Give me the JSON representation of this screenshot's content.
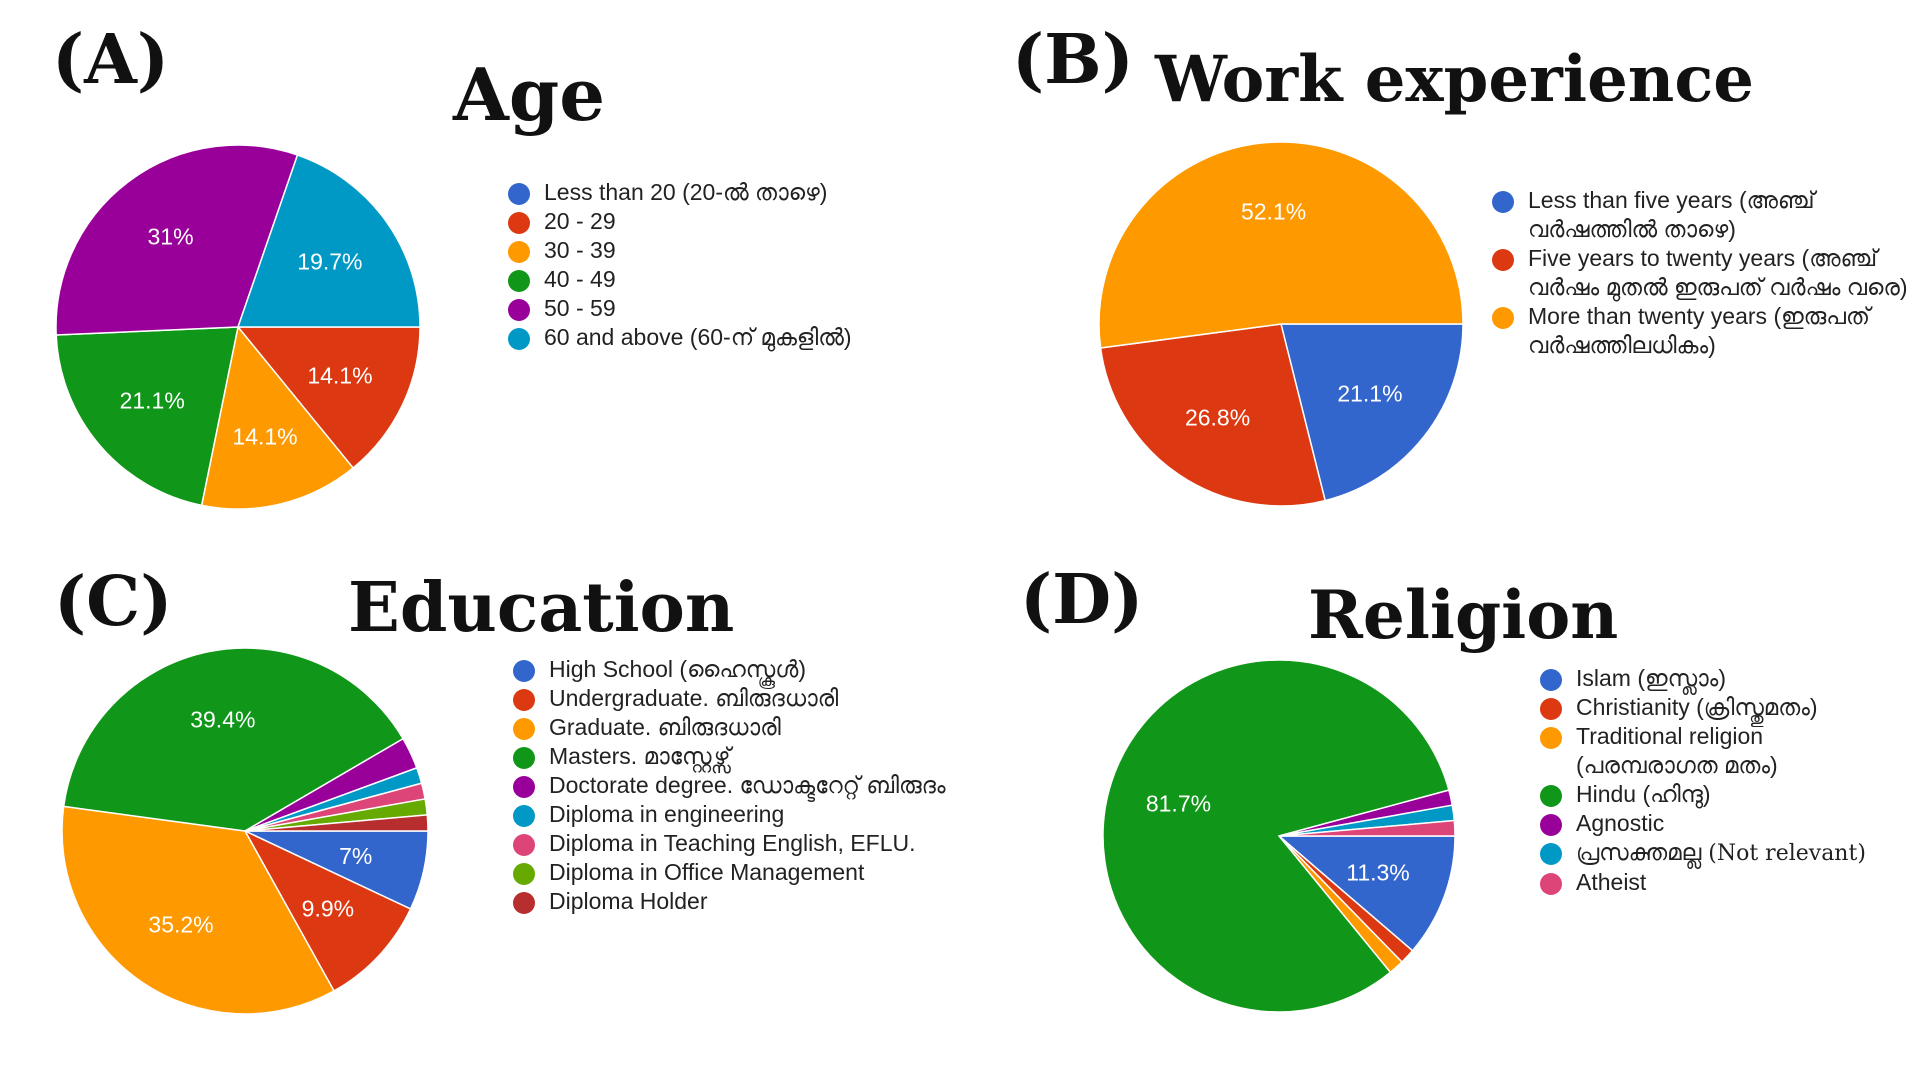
{
  "panels": [
    {
      "label": "(A)",
      "title": "Age"
    },
    {
      "label": "(B)",
      "title": "Work experience"
    },
    {
      "label": "(C)",
      "title": "Education"
    },
    {
      "label": "(D)",
      "title": "Religion"
    }
  ],
  "chart_data": [
    {
      "type": "pie",
      "title": "Age",
      "slices": [
        {
          "label": "Less than 20 (20-ൽ താഴെ)",
          "value": 0,
          "color": "#3366cc",
          "display": ""
        },
        {
          "label": "20 - 29",
          "value": 14.1,
          "color": "#dc3912",
          "display": "14.1%"
        },
        {
          "label": "30 - 39",
          "value": 14.1,
          "color": "#ff9900",
          "display": "14.1%"
        },
        {
          "label": "40 - 49",
          "value": 21.1,
          "color": "#109618",
          "display": "21.1%"
        },
        {
          "label": "50 - 59",
          "value": 31.0,
          "color": "#990099",
          "display": "31%"
        },
        {
          "label": "60 and above (60-ന് മുകളിൽ)",
          "value": 19.7,
          "color": "#0099c6",
          "display": "19.7%"
        }
      ]
    },
    {
      "type": "pie",
      "title": "Work experience",
      "slices": [
        {
          "label": "Less than five years (അഞ്ച് വർഷത്തിൽ താഴെ)",
          "value": 21.1,
          "color": "#3366cc",
          "display": "21.1%"
        },
        {
          "label": "Five years to twenty years (അഞ്ച് വർഷം മുതൽ ഇരുപത് വർഷം വരെ)",
          "value": 26.8,
          "color": "#dc3912",
          "display": "26.8%"
        },
        {
          "label": "More than twenty years (ഇരുപത് വർഷത്തിലധികം)",
          "value": 52.1,
          "color": "#ff9900",
          "display": "52.1%"
        }
      ]
    },
    {
      "type": "pie",
      "title": "Education",
      "slices": [
        {
          "label": "High School (ഹൈസ്കൂൾ)",
          "value": 7.0,
          "color": "#3366cc",
          "display": "7%"
        },
        {
          "label": "Undergraduate. ബിരുദധാരി",
          "value": 9.9,
          "color": "#dc3912",
          "display": "9.9%"
        },
        {
          "label": "Graduate. ബിരുദധാരി",
          "value": 35.2,
          "color": "#ff9900",
          "display": "35.2%"
        },
        {
          "label": "Masters. മാസ്റ്റേഴ്സ്",
          "value": 39.4,
          "color": "#109618",
          "display": "39.4%"
        },
        {
          "label": "Doctorate degree. ഡോക്ടറേറ്റ് ബിരുദം",
          "value": 2.8,
          "color": "#990099",
          "display": ""
        },
        {
          "label": "Diploma in engineering",
          "value": 1.4,
          "color": "#0099c6",
          "display": ""
        },
        {
          "label": "Diploma in Teaching English, EFLU.",
          "value": 1.4,
          "color": "#dd4477",
          "display": ""
        },
        {
          "label": "Diploma in Office Management",
          "value": 1.4,
          "color": "#66aa00",
          "display": ""
        },
        {
          "label": "Diploma Holder",
          "value": 1.4,
          "color": "#b82e2e",
          "display": ""
        }
      ]
    },
    {
      "type": "pie",
      "title": "Religion",
      "slices": [
        {
          "label": "Islam (ഇസ്ലാം)",
          "value": 11.3,
          "color": "#3366cc",
          "display": "11.3%"
        },
        {
          "label": "Christianity (ക്രിസ്തുമതം)",
          "value": 1.4,
          "color": "#dc3912",
          "display": ""
        },
        {
          "label": "Traditional religion (പരമ്പരാഗത മതം)",
          "value": 1.4,
          "color": "#ff9900",
          "display": ""
        },
        {
          "label": "Hindu (ഹിന്ദു)",
          "value": 81.7,
          "color": "#109618",
          "display": "81.7%"
        },
        {
          "label": "Agnostic",
          "value": 1.4,
          "color": "#990099",
          "display": ""
        },
        {
          "label": "പ്രസക്തമല്ല",
          "note": "(Not relevant)",
          "value": 1.4,
          "color": "#0099c6",
          "display": ""
        },
        {
          "label": "Atheist",
          "value": 1.4,
          "color": "#dd4477",
          "display": ""
        }
      ]
    }
  ]
}
